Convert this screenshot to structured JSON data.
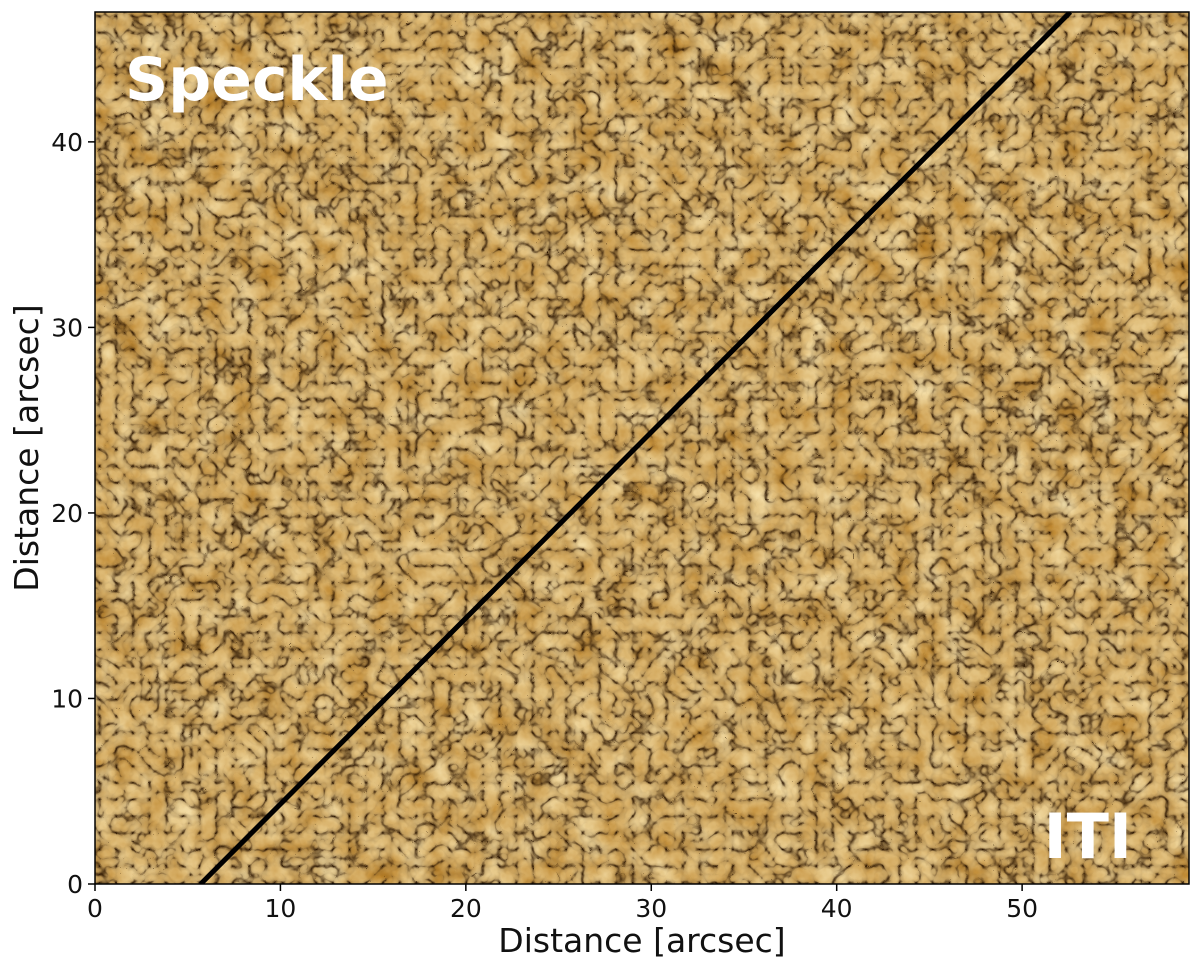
{
  "figure": {
    "image_description_icon": "solar-granulation-image",
    "colormap": [
      "#2a1602",
      "#6e3f05",
      "#b0730a",
      "#e5a62a",
      "#fff3c8"
    ],
    "labels": {
      "top_left": "Speckle",
      "bottom_right": "ITI"
    },
    "xaxis": {
      "label": "Distance [arcsec]",
      "range": [
        0,
        59
      ],
      "ticks": [
        {
          "value": 0,
          "label": "0"
        },
        {
          "value": 10,
          "label": "10"
        },
        {
          "value": 20,
          "label": "20"
        },
        {
          "value": 30,
          "label": "30"
        },
        {
          "value": 40,
          "label": "40"
        },
        {
          "value": 50,
          "label": "50"
        }
      ]
    },
    "yaxis": {
      "label": "Distance [arcsec]",
      "range": [
        0,
        47
      ],
      "ticks": [
        {
          "value": 0,
          "label": "0"
        },
        {
          "value": 10,
          "label": "10"
        },
        {
          "value": 20,
          "label": "20"
        },
        {
          "value": 30,
          "label": "30"
        },
        {
          "value": 40,
          "label": "40"
        }
      ]
    },
    "divider_line": {
      "from": [
        5.7,
        0
      ],
      "to": [
        52.6,
        47
      ],
      "color": "#000000"
    }
  }
}
